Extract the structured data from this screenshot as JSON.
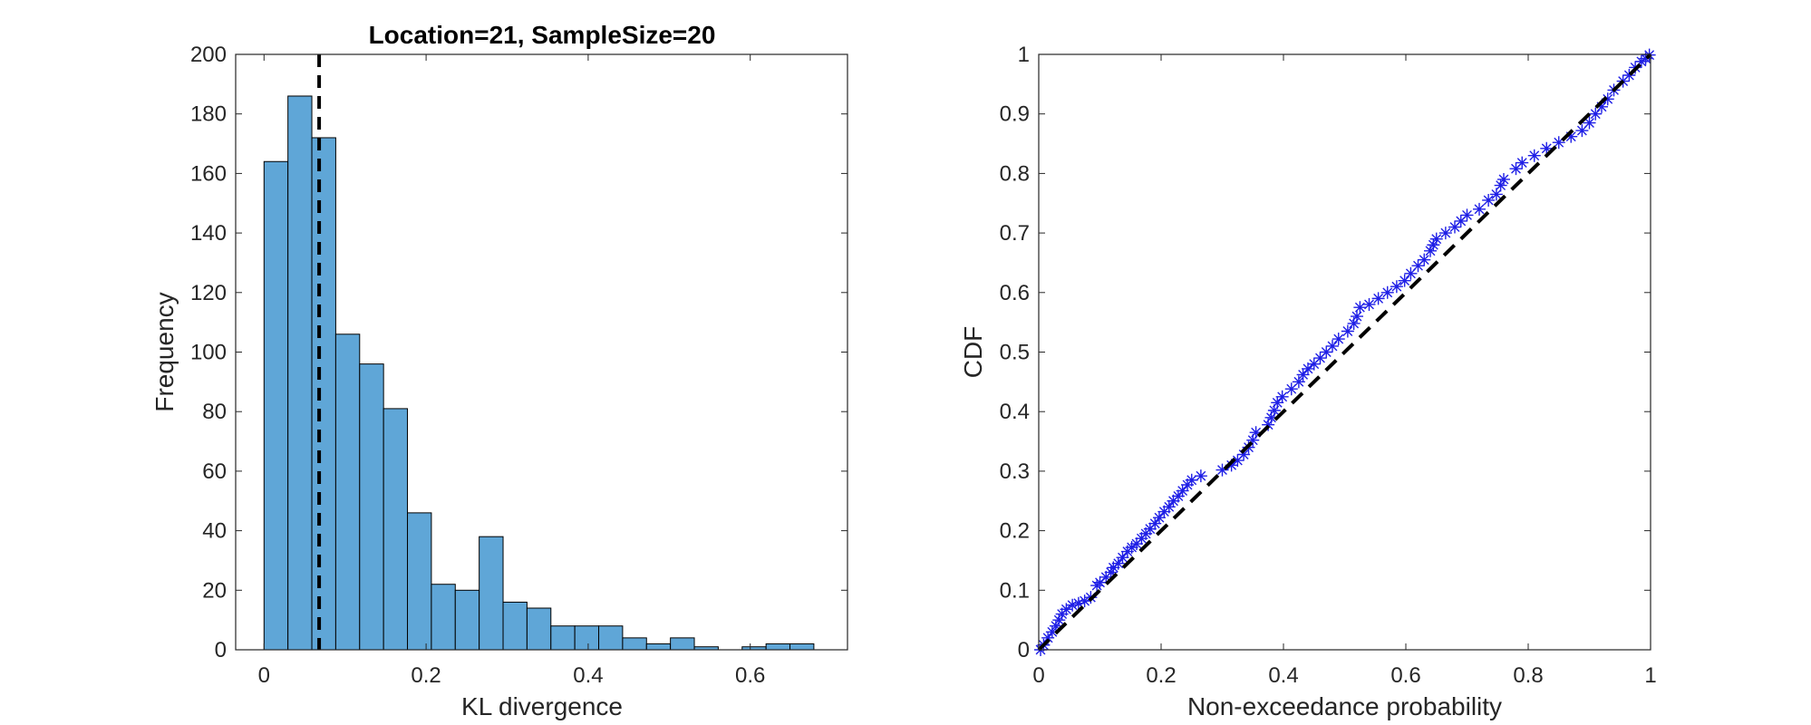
{
  "colors": {
    "bar_fill": "#5fa6d7",
    "bar_edge": "#000000",
    "marker": "#1f1fe6",
    "reference_line": "#000000",
    "axis": "#262626"
  },
  "chart_data": [
    {
      "type": "bar",
      "title": "Location=21, SampleSize=20",
      "xlabel": "KL divergence",
      "ylabel": "Frequency",
      "xlim": [
        -0.035,
        0.72
      ],
      "ylim": [
        0,
        200
      ],
      "xticks": [
        0,
        0.2,
        0.4,
        0.6
      ],
      "xtick_labels": [
        "0",
        "0.2",
        "0.4",
        "0.6"
      ],
      "yticks": [
        0,
        20,
        40,
        60,
        80,
        100,
        120,
        140,
        160,
        180,
        200
      ],
      "ytick_labels": [
        "0",
        "20",
        "40",
        "60",
        "80",
        "100",
        "120",
        "140",
        "160",
        "180",
        "200"
      ],
      "bin_edges": [
        0,
        0.0295,
        0.059,
        0.0885,
        0.118,
        0.1475,
        0.177,
        0.2065,
        0.236,
        0.2655,
        0.295,
        0.3245,
        0.354,
        0.3835,
        0.413,
        0.4425,
        0.472,
        0.5015,
        0.531,
        0.5605,
        0.59,
        0.6195,
        0.649,
        0.6785
      ],
      "values": [
        164,
        186,
        172,
        106,
        96,
        81,
        46,
        22,
        20,
        38,
        16,
        14,
        8,
        8,
        8,
        4,
        2,
        4,
        1,
        0,
        1,
        2,
        2
      ],
      "vertical_line": {
        "x": 0.068,
        "style": "dashed"
      },
      "grid": false,
      "box": true
    },
    {
      "type": "scatter",
      "title": "",
      "xlabel": "Non-exceedance probability",
      "ylabel": "CDF",
      "xlim": [
        0,
        1
      ],
      "ylim": [
        0,
        1
      ],
      "xticks": [
        0,
        0.2,
        0.4,
        0.6,
        0.8,
        1
      ],
      "xtick_labels": [
        "0",
        "0.2",
        "0.4",
        "0.6",
        "0.8",
        "1"
      ],
      "yticks": [
        0,
        0.1,
        0.2,
        0.3,
        0.4,
        0.5,
        0.6,
        0.7,
        0.8,
        0.9,
        1
      ],
      "ytick_labels": [
        "0",
        "0.1",
        "0.2",
        "0.3",
        "0.4",
        "0.5",
        "0.6",
        "0.7",
        "0.8",
        "0.9",
        "1"
      ],
      "marker": "asterisk",
      "reference_line": {
        "x": [
          0,
          1
        ],
        "y": [
          0,
          1
        ],
        "style": "dashed"
      },
      "points": [
        [
          0.003,
          0.0
        ],
        [
          0.008,
          0.008
        ],
        [
          0.015,
          0.02
        ],
        [
          0.022,
          0.03
        ],
        [
          0.028,
          0.04
        ],
        [
          0.033,
          0.05
        ],
        [
          0.038,
          0.06
        ],
        [
          0.045,
          0.068
        ],
        [
          0.055,
          0.075
        ],
        [
          0.065,
          0.078
        ],
        [
          0.075,
          0.082
        ],
        [
          0.085,
          0.088
        ],
        [
          0.095,
          0.108
        ],
        [
          0.1,
          0.113
        ],
        [
          0.11,
          0.122
        ],
        [
          0.118,
          0.13
        ],
        [
          0.122,
          0.138
        ],
        [
          0.13,
          0.145
        ],
        [
          0.137,
          0.155
        ],
        [
          0.145,
          0.165
        ],
        [
          0.152,
          0.172
        ],
        [
          0.16,
          0.178
        ],
        [
          0.168,
          0.187
        ],
        [
          0.175,
          0.195
        ],
        [
          0.182,
          0.203
        ],
        [
          0.19,
          0.212
        ],
        [
          0.197,
          0.222
        ],
        [
          0.205,
          0.232
        ],
        [
          0.213,
          0.24
        ],
        [
          0.22,
          0.25
        ],
        [
          0.228,
          0.258
        ],
        [
          0.235,
          0.267
        ],
        [
          0.243,
          0.277
        ],
        [
          0.25,
          0.285
        ],
        [
          0.265,
          0.292
        ],
        [
          0.3,
          0.302
        ],
        [
          0.315,
          0.31
        ],
        [
          0.325,
          0.318
        ],
        [
          0.335,
          0.328
        ],
        [
          0.343,
          0.34
        ],
        [
          0.35,
          0.352
        ],
        [
          0.355,
          0.365
        ],
        [
          0.375,
          0.378
        ],
        [
          0.38,
          0.39
        ],
        [
          0.385,
          0.402
        ],
        [
          0.39,
          0.415
        ],
        [
          0.398,
          0.425
        ],
        [
          0.413,
          0.438
        ],
        [
          0.425,
          0.45
        ],
        [
          0.432,
          0.462
        ],
        [
          0.44,
          0.472
        ],
        [
          0.45,
          0.48
        ],
        [
          0.46,
          0.49
        ],
        [
          0.47,
          0.5
        ],
        [
          0.48,
          0.51
        ],
        [
          0.49,
          0.522
        ],
        [
          0.505,
          0.535
        ],
        [
          0.515,
          0.548
        ],
        [
          0.52,
          0.56
        ],
        [
          0.525,
          0.575
        ],
        [
          0.54,
          0.58
        ],
        [
          0.555,
          0.59
        ],
        [
          0.57,
          0.6
        ],
        [
          0.585,
          0.61
        ],
        [
          0.598,
          0.62
        ],
        [
          0.608,
          0.632
        ],
        [
          0.62,
          0.645
        ],
        [
          0.63,
          0.655
        ],
        [
          0.64,
          0.67
        ],
        [
          0.645,
          0.68
        ],
        [
          0.65,
          0.69
        ],
        [
          0.665,
          0.7
        ],
        [
          0.68,
          0.71
        ],
        [
          0.69,
          0.72
        ],
        [
          0.7,
          0.73
        ],
        [
          0.72,
          0.74
        ],
        [
          0.735,
          0.755
        ],
        [
          0.748,
          0.765
        ],
        [
          0.755,
          0.78
        ],
        [
          0.76,
          0.79
        ],
        [
          0.78,
          0.808
        ],
        [
          0.79,
          0.818
        ],
        [
          0.81,
          0.83
        ],
        [
          0.83,
          0.842
        ],
        [
          0.85,
          0.852
        ],
        [
          0.87,
          0.862
        ],
        [
          0.888,
          0.872
        ],
        [
          0.9,
          0.885
        ],
        [
          0.91,
          0.9
        ],
        [
          0.92,
          0.912
        ],
        [
          0.93,
          0.925
        ],
        [
          0.94,
          0.94
        ],
        [
          0.955,
          0.955
        ],
        [
          0.965,
          0.965
        ],
        [
          0.975,
          0.978
        ],
        [
          0.985,
          0.988
        ],
        [
          0.992,
          0.993
        ],
        [
          0.998,
          0.999
        ]
      ],
      "grid": false,
      "box": true
    }
  ]
}
